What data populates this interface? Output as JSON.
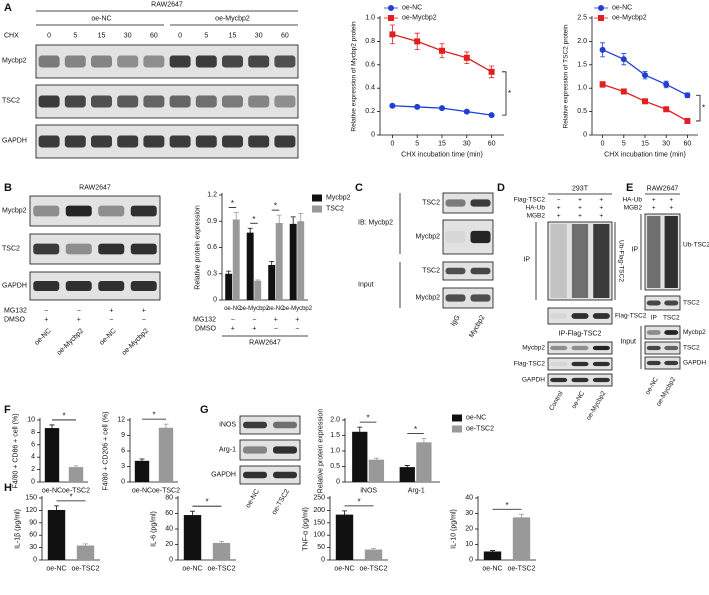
{
  "panel_labels": [
    "A",
    "B",
    "C",
    "D",
    "E",
    "F",
    "G",
    "H"
  ],
  "blots": {
    "A": {
      "cell": "RAW2647",
      "groups": [
        "oe-NC",
        "oe-Mycbp2"
      ],
      "treatment": "CHX",
      "times": [
        "0",
        "5",
        "15",
        "30",
        "60",
        "0",
        "5",
        "15",
        "30",
        "60"
      ],
      "rows": [
        "Mycbp2",
        "TSC2",
        "GAPDH"
      ]
    },
    "B": {
      "cell": "RAW2647",
      "rows": [
        "Mycbp2",
        "TSC2",
        "GAPDH"
      ],
      "treatments": [
        {
          "label": "MG132",
          "signs": [
            "−",
            "−",
            "+",
            "+"
          ]
        },
        {
          "label": "DMSO",
          "signs": [
            "+",
            "+",
            "−",
            "−"
          ]
        }
      ],
      "lanes": [
        "oe-NC",
        "oe-Mycbp2",
        "oe-NC",
        "oe-Mycbp2"
      ]
    },
    "C": {
      "ib": "IB: Mycbp2",
      "ip_rows": [
        "TSC2",
        "Mycbp2"
      ],
      "input_label": "Input",
      "input_rows": [
        "TSC2",
        "Mycbp2"
      ],
      "lanes": [
        "IgG",
        "Mycbp2"
      ]
    },
    "D": {
      "cell": "293T",
      "treatments": [
        {
          "label": "Flag-TSC2",
          "signs": [
            "−",
            "+",
            "+"
          ]
        },
        {
          "label": "HA-Ub",
          "signs": [
            "+",
            "+",
            "+"
          ]
        },
        {
          "label": "MGB2",
          "signs": [
            "+",
            "+",
            "+"
          ]
        }
      ],
      "ip_label": "IP",
      "ip_band": "Ub-Flag-TSC2",
      "ip_flag": "Flag-TSC2",
      "ip_title": "IP-Flag-TSC2",
      "input_rows": [
        "Mycbp2",
        "Flag-TSC2",
        "GAPDH"
      ],
      "lanes": [
        "Control",
        "oe-NC",
        "oe-Mycbp2"
      ]
    },
    "E": {
      "cell": "RAW2647",
      "treatments": [
        {
          "label": "HA-Ub",
          "signs": [
            "+",
            "+"
          ]
        },
        {
          "label": "MGB2",
          "signs": [
            "+",
            "+"
          ]
        }
      ],
      "ip_label": "IP",
      "ip_band": "Ub-TSC2",
      "ip_tsc2": "TSC2",
      "ip_lanes": [
        "IP",
        "TSC2"
      ],
      "input_label": "Input",
      "input_rows": [
        "Mycbp2",
        "TSC2",
        "GAPDH"
      ],
      "lanes": [
        "oe-NC",
        "oe-Mycbp2"
      ]
    },
    "G": {
      "rows": [
        "iNOS",
        "Arg-1",
        "GAPDH"
      ],
      "lanes": [
        "oe-NC",
        "oe-TSC2"
      ]
    }
  },
  "chart_data": [
    {
      "type": "line",
      "categories": [
        "0",
        "5",
        "15",
        "30",
        "60"
      ],
      "xlabel": "CHX incubation time (min)",
      "ylabel": "Relative expression of Mycbp2 protein",
      "ylim": [
        0,
        1
      ],
      "yticks": [
        0,
        0.2,
        0.4,
        0.6,
        0.8,
        {
          "value": 1,
          "label": "1.0"
        }
      ],
      "series": [
        {
          "name": "oe-NC",
          "color": "#1f3fd6",
          "marker": "circle",
          "values": [
            0.25,
            0.24,
            0.23,
            0.2,
            0.17
          ],
          "errors": [
            0.01,
            0.01,
            0.01,
            0.01,
            0.01
          ]
        },
        {
          "name": "oe-Mycbp2",
          "color": "#e02020",
          "marker": "square",
          "values": [
            0.86,
            0.8,
            0.72,
            0.66,
            0.54
          ],
          "errors": [
            0.08,
            0.07,
            0.06,
            0.05,
            0.05
          ]
        }
      ],
      "annotations": [
        "*"
      ]
    },
    {
      "type": "line",
      "categories": [
        "0",
        "5",
        "15",
        "30",
        "60"
      ],
      "xlabel": "CHX incubation time (min)",
      "ylabel": "Relative expression of TSC2 protein",
      "ylim": [
        0,
        2.5
      ],
      "yticks": [
        0,
        0.5,
        {
          "value": 1,
          "label": "1.0"
        },
        1.5,
        {
          "value": 2,
          "label": "2.0"
        },
        2.5
      ],
      "series": [
        {
          "name": "oe-NC",
          "color": "#1f3fd6",
          "marker": "circle",
          "values": [
            1.82,
            1.62,
            1.28,
            1.08,
            0.85
          ],
          "errors": [
            0.15,
            0.12,
            0.08,
            0.07,
            0.05
          ]
        },
        {
          "name": "oe-Mycbp2",
          "color": "#e02020",
          "marker": "square",
          "values": [
            1.08,
            0.93,
            0.72,
            0.55,
            0.3
          ],
          "errors": [
            0.06,
            0.05,
            0.04,
            0.03,
            0.03
          ]
        }
      ],
      "annotations": [
        "*"
      ]
    },
    {
      "type": "bar",
      "categories": [
        "oe-NC",
        "oe-Mycbp2",
        "oe-NC",
        "oe-Mycbp2"
      ],
      "ylabel": "Relative protein expression",
      "ylim": [
        0,
        1.2
      ],
      "yticks": [
        0,
        0.3,
        0.6,
        0.9,
        1.2
      ],
      "series": [
        {
          "name": "Mycbp2",
          "color": "#111111",
          "values": [
            0.3,
            0.77,
            0.4,
            0.87
          ],
          "errors": [
            0.03,
            0.05,
            0.04,
            0.08
          ]
        },
        {
          "name": "TSC2",
          "color": "#999999",
          "values": [
            0.92,
            0.22,
            0.88,
            0.9
          ],
          "errors": [
            0.08,
            0.01,
            0.09,
            0.09
          ]
        }
      ],
      "annotations": [
        "*",
        "*",
        "*"
      ],
      "treatments": [
        {
          "label": "MG132",
          "signs": [
            "−",
            "−",
            "+",
            "+"
          ]
        },
        {
          "label": "DMSO",
          "signs": [
            "+",
            "+",
            "−",
            "−"
          ]
        }
      ],
      "footer": "RAW2647"
    },
    {
      "type": "bar",
      "categories": [
        "oe-NC",
        "oe-TSC2"
      ],
      "ylabel": "F4/80 + CD86 + cell (%)",
      "ylim": [
        0,
        10
      ],
      "yticks": [
        0,
        2,
        4,
        6,
        8,
        10
      ],
      "values": [
        8.7,
        2.4
      ],
      "errors": [
        0.5,
        0.2
      ],
      "colors": [
        "#111111",
        "#999999"
      ],
      "annotations": [
        "*"
      ]
    },
    {
      "type": "bar",
      "categories": [
        "oe-NC",
        "oe-TSC2"
      ],
      "ylabel": "F4/80 + CD206 + cell (%)",
      "ylim": [
        0,
        12
      ],
      "yticks": [
        0,
        3,
        6,
        9,
        12
      ],
      "values": [
        4.1,
        10.5
      ],
      "errors": [
        0.35,
        0.7
      ],
      "colors": [
        "#111111",
        "#999999"
      ],
      "annotations": [
        "*"
      ]
    },
    {
      "type": "bar",
      "categories": [
        "iNOS",
        "Arg-1"
      ],
      "ylabel": "Relative protein expression",
      "ylim": [
        0,
        2
      ],
      "yticks": [
        0,
        0.5,
        {
          "value": 1,
          "label": "1.0"
        },
        1.5,
        {
          "value": 2,
          "label": "2.0"
        }
      ],
      "series": [
        {
          "name": "oe-NC",
          "color": "#111111",
          "values": [
            1.62,
            0.48
          ],
          "errors": [
            0.15,
            0.05
          ]
        },
        {
          "name": "oe-TSC2",
          "color": "#999999",
          "values": [
            0.72,
            1.28
          ],
          "errors": [
            0.05,
            0.12
          ]
        }
      ],
      "annotations": [
        "*",
        "*"
      ]
    },
    {
      "type": "bar",
      "categories": [
        "oe-NC",
        "oe-TSC2"
      ],
      "ylabel": "IL-1β (pg/ml)",
      "ylim": [
        0,
        150
      ],
      "yticks": [
        0,
        30,
        60,
        90,
        120,
        150
      ],
      "values": [
        121,
        35
      ],
      "errors": [
        10,
        4
      ],
      "colors": [
        "#111111",
        "#999999"
      ],
      "annotations": [
        "*"
      ]
    },
    {
      "type": "bar",
      "categories": [
        "oe-NC",
        "oe-TSC2"
      ],
      "ylabel": "IL-6 (pg/ml)",
      "ylim": [
        0,
        80
      ],
      "yticks": [
        0,
        20,
        40,
        60,
        80
      ],
      "values": [
        58,
        22
      ],
      "errors": [
        5,
        2
      ],
      "colors": [
        "#111111",
        "#999999"
      ],
      "annotations": [
        "*"
      ]
    },
    {
      "type": "bar",
      "categories": [
        "oe-NC",
        "oe-TSC2"
      ],
      "ylabel": "TNF-α (pg/ml)",
      "ylim": [
        0,
        250
      ],
      "yticks": [
        0,
        50,
        100,
        150,
        200,
        250
      ],
      "values": [
        183,
        42
      ],
      "errors": [
        15,
        4
      ],
      "colors": [
        "#111111",
        "#999999"
      ],
      "annotations": [
        "*"
      ]
    },
    {
      "type": "bar",
      "categories": [
        "oe-NC",
        "oe-TSC2"
      ],
      "ylabel": "IL-10 (pg/ml)",
      "ylim": [
        0,
        40
      ],
      "yticks": [
        0,
        10,
        20,
        30,
        40
      ],
      "values": [
        5.5,
        27.5
      ],
      "errors": [
        0.6,
        2
      ],
      "colors": [
        "#111111",
        "#999999"
      ],
      "annotations": [
        "*"
      ]
    }
  ]
}
